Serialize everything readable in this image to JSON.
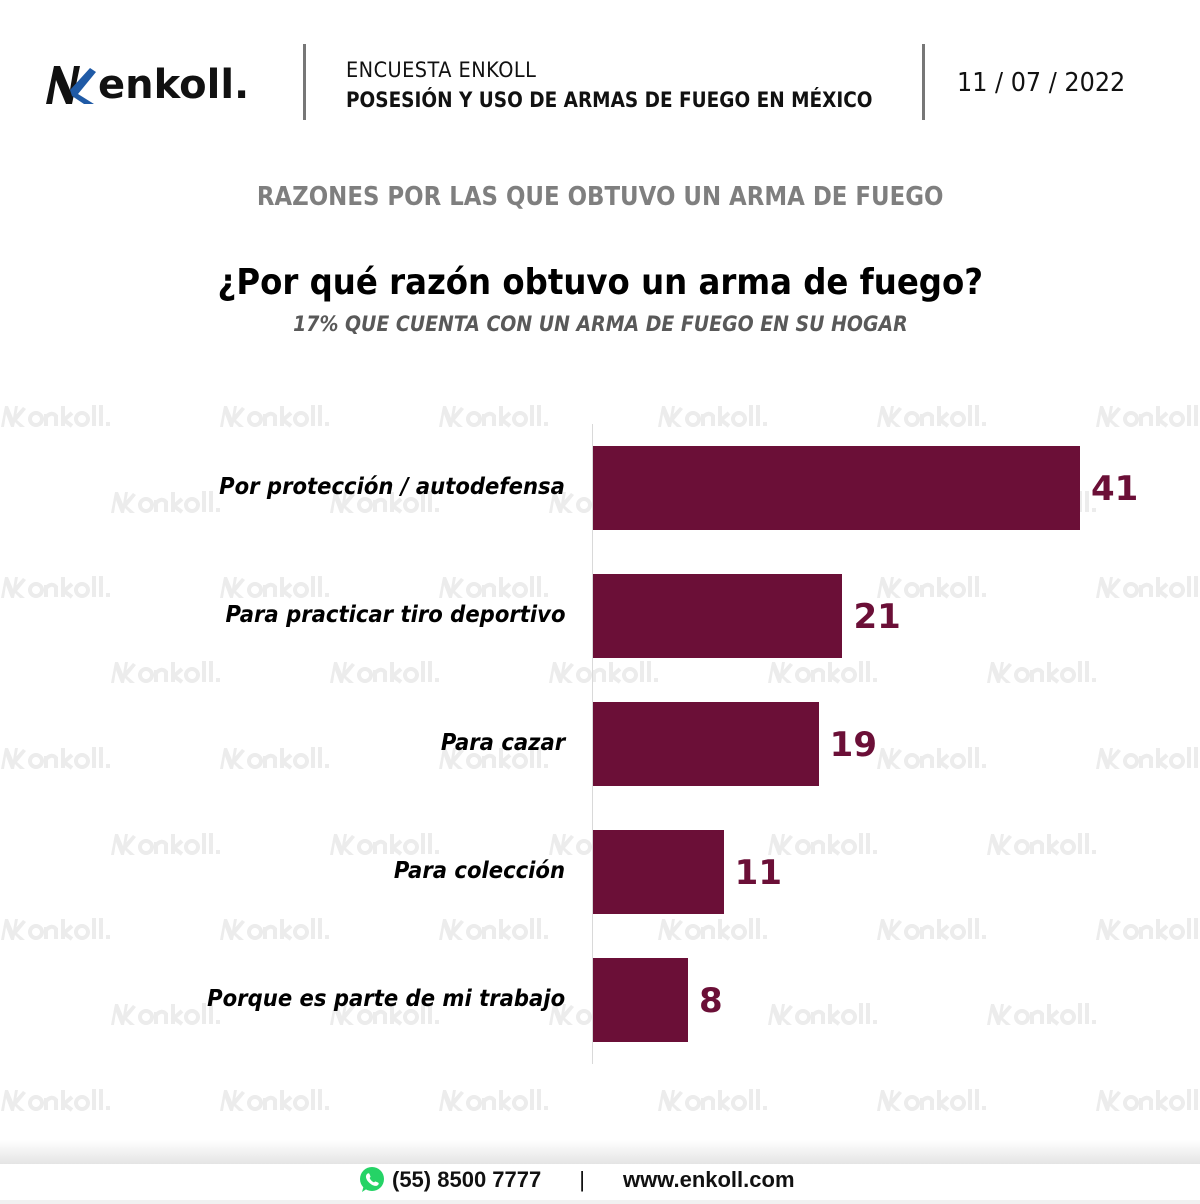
{
  "header": {
    "logo_text": "enkoll.",
    "survey_label": "ENCUESTA ENKOLL",
    "survey_title": "POSESIÓN Y USO DE ARMAS DE FUEGO EN MÉXICO",
    "date": "11 / 07 / 2022"
  },
  "section_title": "RAZONES POR LAS QUE OBTUVO UN ARMA DE FUEGO",
  "watermark": "enkoll.",
  "chart_data": {
    "type": "bar",
    "orientation": "horizontal",
    "title": "¿Por qué razón obtuvo un arma de fuego?",
    "subtitle": "17% QUE CUENTA CON UN ARMA DE FUEGO EN SU HOGAR",
    "categories": [
      "Por protección / autodefensa",
      "Para practicar tiro deportivo",
      "Para cazar",
      "Para colección",
      "Porque es parte de mi trabajo"
    ],
    "values": [
      41,
      21,
      19,
      11,
      8
    ],
    "data_labels": [
      "41",
      "21",
      "19",
      "11",
      "8"
    ],
    "color": "#6b0f37",
    "grid": false
  },
  "footer": {
    "phone_icon": "whatsapp-icon",
    "phone": "(55) 8500 7777",
    "separator": "|",
    "website": "www.enkoll.com"
  }
}
